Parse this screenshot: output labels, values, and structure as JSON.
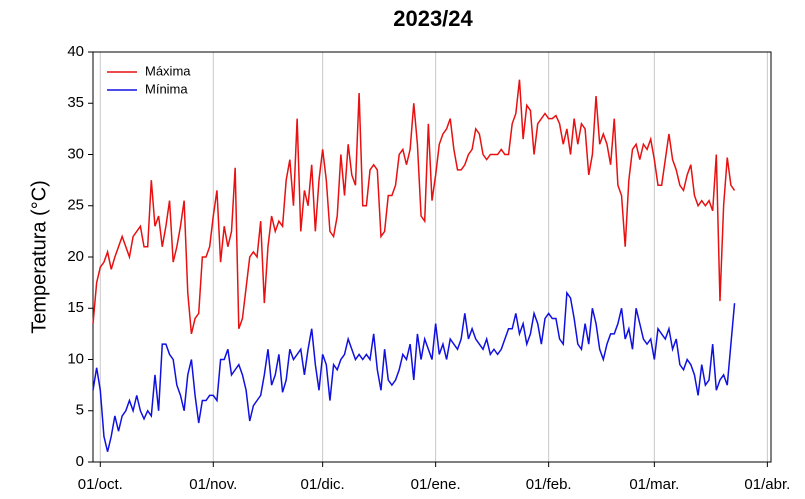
{
  "chart_data": {
    "type": "line",
    "title": "2023/24",
    "y_label": "Temperatura (°C)",
    "x": [
      -2,
      -1,
      0,
      1,
      2,
      3,
      4,
      5,
      6,
      7,
      8,
      9,
      10,
      11,
      12,
      13,
      14,
      15,
      16,
      17,
      18,
      19,
      20,
      21,
      22,
      23,
      24,
      25,
      26,
      27,
      28,
      29,
      30,
      31,
      32,
      33,
      34,
      35,
      36,
      37,
      38,
      39,
      40,
      41,
      42,
      43,
      44,
      45,
      46,
      47,
      48,
      49,
      50,
      51,
      52,
      53,
      54,
      55,
      56,
      57,
      58,
      59,
      60,
      61,
      62,
      63,
      64,
      65,
      66,
      67,
      68,
      69,
      70,
      71,
      72,
      73,
      74,
      75,
      76,
      77,
      78,
      79,
      80,
      81,
      82,
      83,
      84,
      85,
      86,
      87,
      88,
      89,
      90,
      91,
      92,
      93,
      94,
      95,
      96,
      97,
      98,
      99,
      100,
      101,
      102,
      103,
      104,
      105,
      106,
      107,
      108,
      109,
      110,
      111,
      112,
      113,
      114,
      115,
      116,
      117,
      118,
      119,
      120,
      121,
      122,
      123,
      124,
      125,
      126,
      127,
      128,
      129,
      130,
      131,
      132,
      133,
      134,
      135,
      136,
      137,
      138,
      139,
      140,
      141,
      142,
      143,
      144,
      145,
      146,
      147,
      148,
      149,
      150,
      151,
      152,
      153,
      154,
      155,
      156,
      157,
      158,
      159,
      160,
      161,
      162,
      163,
      164,
      165,
      166,
      167,
      168,
      169,
      170,
      171,
      172,
      173,
      174
    ],
    "series": [
      {
        "name": "Máxima",
        "color": "#e81010",
        "values": [
          13.5,
          17.5,
          19,
          19.5,
          20.5,
          18.8,
          20,
          21,
          22,
          21,
          20,
          22,
          22.5,
          23,
          21,
          21,
          27.5,
          23,
          24,
          21,
          23,
          25.5,
          19.5,
          21,
          23,
          25.5,
          16.5,
          12.5,
          14,
          14.5,
          20,
          20,
          21,
          24,
          26.5,
          19.5,
          23,
          21,
          22.5,
          28.7,
          13,
          14,
          17,
          20,
          20.5,
          20,
          23.5,
          15.5,
          21,
          24,
          22.5,
          23.5,
          23,
          27.5,
          29.5,
          25,
          33.5,
          22.5,
          26.5,
          25,
          29,
          22.5,
          27.5,
          30.5,
          27.5,
          22.5,
          22,
          24,
          30,
          26,
          31,
          28,
          27,
          36,
          25,
          25,
          28.5,
          29,
          28.5,
          22,
          22.5,
          26,
          26,
          27,
          30,
          30.5,
          29,
          30.5,
          35,
          31,
          24,
          23.5,
          33,
          25.5,
          28,
          31,
          32,
          32.5,
          33.5,
          30.5,
          28.5,
          28.5,
          29,
          30,
          30.5,
          32.5,
          32,
          30,
          29.5,
          30,
          30,
          30,
          30.5,
          30,
          30,
          33,
          34,
          37.3,
          31.5,
          34.8,
          34.3,
          30,
          33,
          33.5,
          34,
          33.5,
          33.5,
          33.8,
          33,
          31,
          32.5,
          30,
          33.5,
          31,
          33,
          32.5,
          28,
          30,
          35.7,
          31,
          32,
          31,
          29,
          33.5,
          27,
          26,
          21,
          27.5,
          30.5,
          31,
          29.5,
          31,
          30.5,
          31.5,
          29.5,
          27,
          27,
          29.5,
          32,
          29.5,
          28.5,
          27,
          26.5,
          28,
          29,
          26,
          25,
          25.5,
          25,
          25.5,
          24.5,
          30,
          15.7,
          25,
          29.7,
          27,
          26.5
        ]
      },
      {
        "name": "Mínima",
        "color": "#1010e0",
        "values": [
          7,
          9.2,
          7,
          2.5,
          1,
          2.5,
          4.5,
          3,
          4.5,
          5,
          6,
          5,
          6.5,
          5,
          4.2,
          5,
          4.5,
          8.5,
          5,
          11.5,
          11.5,
          10.5,
          10,
          7.5,
          6.5,
          5,
          8.5,
          10,
          6.5,
          3.8,
          6,
          6,
          6.5,
          6.5,
          6,
          10,
          10,
          11,
          8.5,
          9,
          9.5,
          8.5,
          7,
          4,
          5.5,
          6,
          6.5,
          8.5,
          11,
          7.5,
          8.5,
          10.5,
          6.8,
          8,
          11,
          10,
          10.5,
          11,
          8.5,
          11,
          13,
          9.5,
          7,
          10.5,
          9.5,
          6,
          9.5,
          9,
          10,
          10.5,
          12,
          11,
          10,
          10.5,
          10,
          10.5,
          10,
          12.5,
          9,
          7,
          11,
          8,
          7.5,
          8,
          9,
          10.5,
          10,
          11.5,
          8,
          12.5,
          10,
          12,
          11,
          10,
          13.5,
          10.5,
          11.5,
          10,
          12,
          11.5,
          11,
          12,
          14.5,
          12,
          13,
          12,
          11.5,
          11,
          12,
          10.5,
          11,
          10.5,
          11,
          12,
          13,
          13,
          14.5,
          12.5,
          13.5,
          11.5,
          12.5,
          14.5,
          13.5,
          11.5,
          14,
          14.5,
          14,
          14,
          12,
          11.5,
          16.5,
          16,
          14,
          11.5,
          11,
          13.5,
          11.5,
          15,
          13.5,
          11,
          10,
          11.5,
          12.5,
          12.5,
          13.5,
          15,
          12,
          13,
          11,
          15,
          13.5,
          12,
          11.5,
          12,
          10,
          13,
          12.5,
          12,
          13,
          11,
          12,
          9.5,
          9,
          10,
          9.5,
          8.5,
          6.5,
          9.5,
          7.5,
          8,
          11.5,
          7,
          8,
          8.5,
          7.5,
          11.5,
          15.5
        ]
      }
    ],
    "xlim": [
      -2,
      184
    ],
    "xticks": [
      {
        "value": 0,
        "label": "01/oct."
      },
      {
        "value": 31,
        "label": "01/nov."
      },
      {
        "value": 61,
        "label": "01/dic."
      },
      {
        "value": 92,
        "label": "01/ene."
      },
      {
        "value": 123,
        "label": "01/feb."
      },
      {
        "value": 152,
        "label": "01/mar."
      },
      {
        "value": 183,
        "label": "01/abr."
      }
    ],
    "ylim": [
      0,
      40
    ],
    "yticks": [
      0,
      5,
      10,
      15,
      20,
      25,
      30,
      35,
      40
    ],
    "grid": "x",
    "legend": "upper-left"
  }
}
